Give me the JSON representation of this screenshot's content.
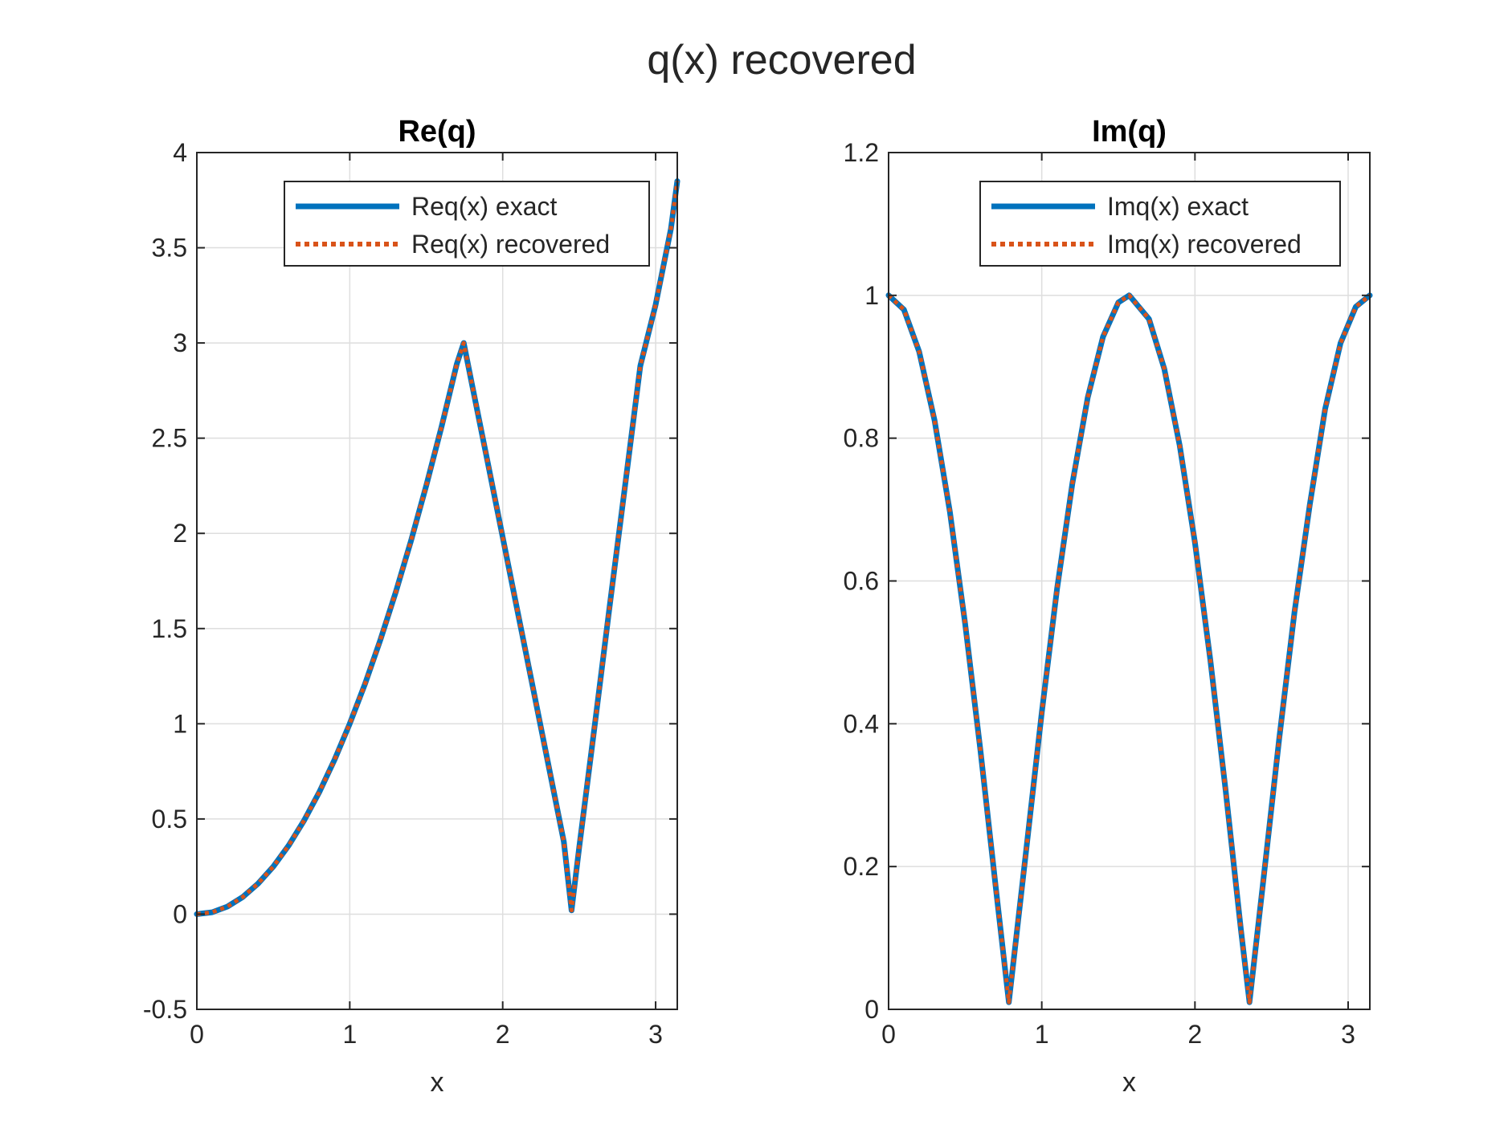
{
  "figure": {
    "title": "q(x) recovered"
  },
  "colors": {
    "exact": "#0072BD",
    "recovered": "#D95319",
    "axis": "#262626",
    "grid": "#dedede"
  },
  "chart_data": [
    {
      "type": "line",
      "title": "Re(q)",
      "xlabel": "x",
      "ylabel": "",
      "xlim": [
        0,
        3.1416
      ],
      "ylim": [
        -0.5,
        4
      ],
      "xticks": [
        0,
        1,
        2,
        3
      ],
      "xtick_labels": [
        "0",
        "1",
        "2",
        "3"
      ],
      "yticks": [
        -0.5,
        0,
        0.5,
        1,
        1.5,
        2,
        2.5,
        3,
        3.5,
        4
      ],
      "ytick_labels": [
        "-0.5",
        "0",
        "0.5",
        "1",
        "1.5",
        "2",
        "2.5",
        "3",
        "3.5",
        "4"
      ],
      "grid": true,
      "legend_position": "top-right",
      "series": [
        {
          "name": "Req(x) exact",
          "style": "solid",
          "color": "#0072BD"
        },
        {
          "name": "Req(x) recovered",
          "style": "dotted",
          "color": "#D95319"
        }
      ],
      "x": [
        0,
        0.1,
        0.2,
        0.3,
        0.4,
        0.5,
        0.6,
        0.7,
        0.8,
        0.9,
        1.0,
        1.1,
        1.2,
        1.3,
        1.4,
        1.5,
        1.6,
        1.7,
        1.745,
        1.8,
        1.9,
        2.0,
        2.1,
        2.2,
        2.3,
        2.4,
        2.45,
        2.5,
        2.6,
        2.7,
        2.8,
        2.9,
        3.0,
        3.1,
        3.1416
      ],
      "y": [
        0,
        0.01,
        0.04,
        0.09,
        0.16,
        0.25,
        0.36,
        0.49,
        0.64,
        0.81,
        1.0,
        1.21,
        1.44,
        1.69,
        1.96,
        2.25,
        2.56,
        2.89,
        3.0,
        2.78,
        2.38,
        1.98,
        1.58,
        1.18,
        0.78,
        0.38,
        0.02,
        0.35,
        0.98,
        1.62,
        2.25,
        2.88,
        3.2,
        3.6,
        3.85
      ]
    },
    {
      "type": "line",
      "title": "Im(q)",
      "xlabel": "x",
      "ylabel": "",
      "xlim": [
        0,
        3.1416
      ],
      "ylim": [
        0,
        1.2
      ],
      "xticks": [
        0,
        1,
        2,
        3
      ],
      "xtick_labels": [
        "0",
        "1",
        "2",
        "3"
      ],
      "yticks": [
        0,
        0.2,
        0.4,
        0.6,
        0.8,
        1,
        1.2
      ],
      "ytick_labels": [
        "0",
        "0.2",
        "0.4",
        "0.6",
        "0.8",
        "1",
        "1.2"
      ],
      "grid": true,
      "legend_position": "top-right",
      "series": [
        {
          "name": "Imq(x) exact",
          "style": "solid",
          "color": "#0072BD"
        },
        {
          "name": "Imq(x) recovered",
          "style": "dotted",
          "color": "#D95319"
        }
      ],
      "x": [
        0,
        0.1,
        0.2,
        0.3,
        0.4,
        0.5,
        0.6,
        0.7,
        0.785,
        0.9,
        1.0,
        1.1,
        1.2,
        1.3,
        1.4,
        1.5,
        1.571,
        1.7,
        1.8,
        1.9,
        2.0,
        2.1,
        2.2,
        2.3,
        2.356,
        2.45,
        2.55,
        2.65,
        2.75,
        2.85,
        2.95,
        3.05,
        3.1416
      ],
      "y": [
        1.0,
        0.98,
        0.921,
        0.825,
        0.697,
        0.54,
        0.362,
        0.17,
        0.01,
        0.226,
        0.416,
        0.589,
        0.737,
        0.857,
        0.942,
        0.99,
        1.0,
        0.967,
        0.897,
        0.79,
        0.654,
        0.49,
        0.307,
        0.112,
        0.01,
        0.187,
        0.379,
        0.557,
        0.707,
        0.841,
        0.933,
        0.984,
        1.0
      ]
    }
  ]
}
